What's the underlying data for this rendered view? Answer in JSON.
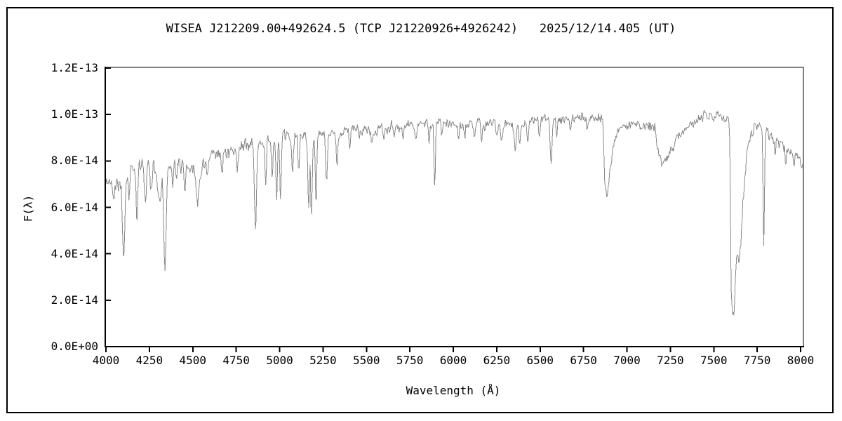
{
  "chart_data": {
    "type": "line",
    "title": "WISEA J212209.00+492624.5 (TCP J21220926+4926242)   2025/12/14.405 (UT)",
    "xlabel": "Wavelength (Å)",
    "ylabel": "F(λ)",
    "xlim": [
      4000,
      8016
    ],
    "ylim": [
      0,
      1.2e-13
    ],
    "x_ticks": [
      4000,
      4250,
      4500,
      4750,
      5000,
      5250,
      5500,
      5750,
      6000,
      6250,
      6500,
      6750,
      7000,
      7250,
      7500,
      7750,
      8000
    ],
    "y_ticks": [
      0,
      2e-14,
      4e-14,
      6e-14,
      8e-14,
      1e-13,
      1.2e-13
    ],
    "y_tick_labels": [
      "0.0E+00",
      "2.0E-14",
      "4.0E-14",
      "6.0E-14",
      "8.0E-14",
      "1.0E-13",
      "1.2E-13"
    ],
    "grid": false,
    "legend": false,
    "flux_unit_scale": 1e-14,
    "colors": {
      "trace": "#8a8a8a",
      "axis": "#000000",
      "frame": "#808080",
      "background": "#ffffff",
      "text": "#000000"
    },
    "continuum_points": [
      [
        4000,
        7.0
      ],
      [
        4060,
        7.15
      ],
      [
        4120,
        7.45
      ],
      [
        4180,
        7.7
      ],
      [
        4250,
        7.9
      ],
      [
        4310,
        7.85
      ],
      [
        4360,
        7.75
      ],
      [
        4420,
        7.8
      ],
      [
        4470,
        7.75
      ],
      [
        4510,
        7.85
      ],
      [
        4560,
        7.95
      ],
      [
        4620,
        8.15
      ],
      [
        4700,
        8.45
      ],
      [
        4780,
        8.6
      ],
      [
        4840,
        8.75
      ],
      [
        4900,
        8.8
      ],
      [
        5000,
        8.9
      ],
      [
        5080,
        9.0
      ],
      [
        5160,
        8.95
      ],
      [
        5240,
        9.05
      ],
      [
        5320,
        9.15
      ],
      [
        5400,
        9.3
      ],
      [
        5480,
        9.45
      ],
      [
        5560,
        9.35
      ],
      [
        5640,
        9.45
      ],
      [
        5720,
        9.5
      ],
      [
        5800,
        9.55
      ],
      [
        5880,
        9.6
      ],
      [
        5960,
        9.6
      ],
      [
        6040,
        9.55
      ],
      [
        6120,
        9.55
      ],
      [
        6200,
        9.6
      ],
      [
        6280,
        9.65
      ],
      [
        6360,
        9.6
      ],
      [
        6440,
        9.65
      ],
      [
        6520,
        9.8
      ],
      [
        6600,
        9.85
      ],
      [
        6680,
        9.8
      ],
      [
        6760,
        9.85
      ],
      [
        6820,
        9.85
      ],
      [
        6862,
        9.8
      ],
      [
        6872,
        7.2
      ],
      [
        6882,
        6.55
      ],
      [
        6890,
        6.7
      ],
      [
        6900,
        7.4
      ],
      [
        6915,
        8.3
      ],
      [
        6930,
        9.0
      ],
      [
        6950,
        9.35
      ],
      [
        6975,
        9.5
      ],
      [
        7040,
        9.55
      ],
      [
        7100,
        9.6
      ],
      [
        7160,
        9.45
      ],
      [
        7175,
        8.6
      ],
      [
        7190,
        8.05
      ],
      [
        7202,
        7.8
      ],
      [
        7215,
        8.05
      ],
      [
        7235,
        8.3
      ],
      [
        7255,
        8.5
      ],
      [
        7280,
        8.85
      ],
      [
        7320,
        9.2
      ],
      [
        7380,
        9.6
      ],
      [
        7440,
        9.9
      ],
      [
        7500,
        9.95
      ],
      [
        7550,
        10.0
      ],
      [
        7585,
        9.85
      ],
      [
        7593,
        9.0
      ],
      [
        7600,
        2.6
      ],
      [
        7609,
        1.4
      ],
      [
        7617,
        1.6
      ],
      [
        7625,
        3.2
      ],
      [
        7634,
        3.9
      ],
      [
        7645,
        3.6
      ],
      [
        7656,
        4.3
      ],
      [
        7668,
        6.2
      ],
      [
        7680,
        7.3
      ],
      [
        7695,
        8.7
      ],
      [
        7712,
        9.2
      ],
      [
        7735,
        9.5
      ],
      [
        7760,
        9.65
      ],
      [
        7780,
        9.55
      ],
      [
        7800,
        9.3
      ],
      [
        7830,
        9.1
      ],
      [
        7870,
        8.9
      ],
      [
        7900,
        8.65
      ],
      [
        7940,
        8.35
      ],
      [
        7975,
        8.1
      ],
      [
        8000,
        7.95
      ],
      [
        8016,
        7.6
      ]
    ],
    "absorption_features": [
      [
        4045,
        6.6,
        5
      ],
      [
        4102,
        3.85,
        7
      ],
      [
        4132,
        6.3,
        4
      ],
      [
        4178,
        5.1,
        4
      ],
      [
        4227,
        6.15,
        5
      ],
      [
        4260,
        6.7,
        5
      ],
      [
        4308,
        6.3,
        11
      ],
      [
        4340,
        3.35,
        7
      ],
      [
        4383,
        6.8,
        4
      ],
      [
        4405,
        6.9,
        4
      ],
      [
        4455,
        6.9,
        4
      ],
      [
        4530,
        6.4,
        10
      ],
      [
        4585,
        7.2,
        5
      ],
      [
        4668,
        7.4,
        5
      ],
      [
        4755,
        7.8,
        4
      ],
      [
        4861,
        4.95,
        6
      ],
      [
        4920,
        7.0,
        4
      ],
      [
        4957,
        7.4,
        4
      ],
      [
        4983,
        6.25,
        4
      ],
      [
        5005,
        6.4,
        4
      ],
      [
        5075,
        7.4,
        4
      ],
      [
        5110,
        7.5,
        4
      ],
      [
        5167,
        5.85,
        4
      ],
      [
        5183,
        5.6,
        5
      ],
      [
        5210,
        6.0,
        4
      ],
      [
        5270,
        6.9,
        5
      ],
      [
        5330,
        8.0,
        4
      ],
      [
        5405,
        8.55,
        4
      ],
      [
        5460,
        8.9,
        4
      ],
      [
        5530,
        8.7,
        4
      ],
      [
        5600,
        8.9,
        4
      ],
      [
        5660,
        9.0,
        4
      ],
      [
        5712,
        8.95,
        4
      ],
      [
        5785,
        9.1,
        4
      ],
      [
        5860,
        8.9,
        4
      ],
      [
        5893,
        6.8,
        4
      ],
      [
        5935,
        9.0,
        4
      ],
      [
        6030,
        9.0,
        4
      ],
      [
        6065,
        9.0,
        4
      ],
      [
        6122,
        8.85,
        4
      ],
      [
        6162,
        8.8,
        4
      ],
      [
        6250,
        8.95,
        4
      ],
      [
        6280,
        8.85,
        5
      ],
      [
        6357,
        8.35,
        5
      ],
      [
        6382,
        8.65,
        4
      ],
      [
        6430,
        8.85,
        4
      ],
      [
        6495,
        9.05,
        4
      ],
      [
        6563,
        7.95,
        5
      ],
      [
        6595,
        9.2,
        3
      ],
      [
        6675,
        9.2,
        4
      ],
      [
        6770,
        9.3,
        4
      ],
      [
        7788,
        4.3,
        4
      ],
      [
        7855,
        8.3,
        4
      ],
      [
        7915,
        8.0,
        4
      ],
      [
        7960,
        7.7,
        4
      ]
    ],
    "noise": {
      "seed": 42,
      "sample_step_angstrom": 4,
      "amplitude_points": [
        [
          4000,
          0.38
        ],
        [
          4300,
          0.34
        ],
        [
          4700,
          0.3
        ],
        [
          5200,
          0.26
        ],
        [
          5700,
          0.22
        ],
        [
          6300,
          0.2
        ],
        [
          6900,
          0.2
        ],
        [
          7500,
          0.22
        ],
        [
          8016,
          0.26
        ]
      ]
    }
  }
}
